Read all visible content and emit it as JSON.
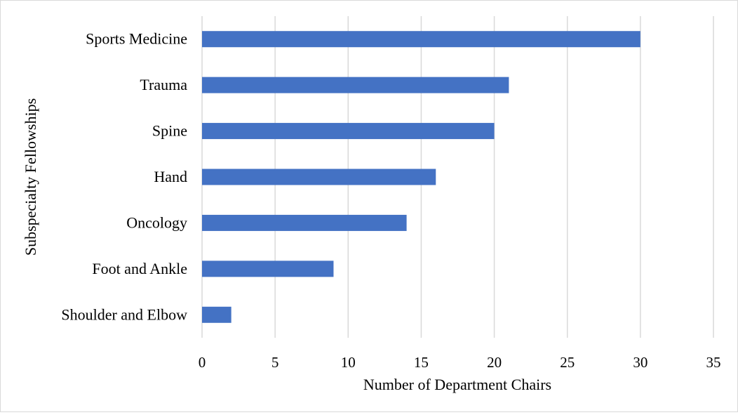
{
  "chart_data": {
    "type": "bar",
    "orientation": "horizontal",
    "title": "",
    "xlabel": "Number of Department Chairs",
    "ylabel": "Subspecialty Fellowships",
    "categories": [
      "Sports Medicine",
      "Trauma",
      "Spine",
      "Hand",
      "Oncology",
      "Foot and Ankle",
      "Shoulder and Elbow"
    ],
    "values": [
      30,
      21,
      20,
      16,
      14,
      9,
      2
    ],
    "xlim": [
      0,
      35
    ],
    "x_ticks": [
      "0",
      "5",
      "10",
      "15",
      "20",
      "25",
      "30",
      "35"
    ],
    "x_tick_values": [
      0,
      5,
      10,
      15,
      20,
      25,
      30,
      35
    ],
    "grid": "vertical",
    "legend": "none",
    "bar_color": "#4472c4",
    "grid_color": "#d9d9d9"
  }
}
